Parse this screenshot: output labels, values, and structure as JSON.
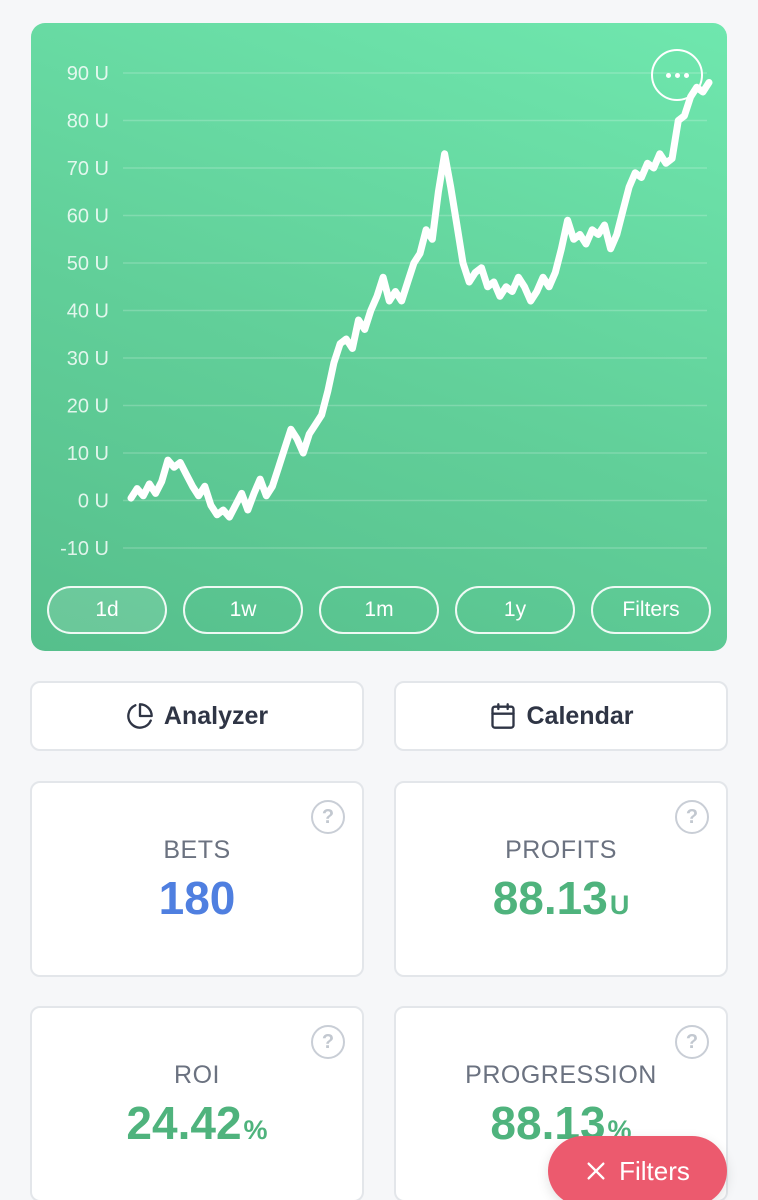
{
  "chart": {
    "menu_icon": "more-horizontal-icon",
    "range_buttons": [
      {
        "label": "1d",
        "active": true
      },
      {
        "label": "1w",
        "active": false
      },
      {
        "label": "1m",
        "active": false
      },
      {
        "label": "1y",
        "active": false
      },
      {
        "label": "Filters",
        "active": false
      }
    ]
  },
  "chart_data": {
    "type": "line",
    "title": "",
    "xlabel": "",
    "ylabel": "",
    "y_unit": "U",
    "ylim": [
      -10,
      90
    ],
    "yticks": [
      90,
      80,
      70,
      60,
      50,
      40,
      30,
      20,
      10,
      0,
      -10
    ],
    "ytick_labels": [
      "90 U",
      "80 U",
      "70 U",
      "60 U",
      "50 U",
      "40 U",
      "30 U",
      "20 U",
      "10 U",
      "0 U",
      "-10 U"
    ],
    "grid": true,
    "line_color": "#ffffff",
    "series": [
      {
        "values": [
          0.5,
          2.5,
          1.0,
          3.5,
          1.5,
          4.0,
          8.5,
          7.0,
          8.0,
          5.5,
          3.0,
          1.0,
          3.0,
          -1.0,
          -3.0,
          -2.0,
          -3.5,
          -1.0,
          1.5,
          -2.0,
          1.5,
          4.5,
          1.0,
          3.0,
          7.0,
          11.0,
          15.0,
          13.0,
          10.0,
          14.0,
          16.0,
          18.0,
          23.0,
          29.0,
          33.0,
          34.0,
          32.0,
          38.0,
          36.0,
          40.0,
          43.0,
          47.0,
          42.0,
          44.0,
          42.0,
          46.0,
          50.0,
          52.0,
          57.0,
          55.0,
          65.0,
          73.0,
          66.0,
          58.0,
          50.0,
          46.0,
          48.0,
          49.0,
          45.0,
          46.0,
          43.0,
          45.0,
          44.0,
          47.0,
          45.0,
          42.0,
          44.0,
          47.0,
          45.0,
          48.0,
          53.0,
          59.0,
          55.0,
          56.0,
          54.0,
          57.0,
          56.0,
          58.0,
          53.0,
          56.0,
          61.0,
          66.0,
          69.0,
          68.0,
          71.0,
          70.0,
          73.0,
          71.0,
          72.0,
          80.0,
          81.0,
          85.0,
          87.0,
          86.0,
          88.0
        ]
      }
    ]
  },
  "tools": {
    "analyzer": {
      "label": "Analyzer",
      "icon": "pie-chart-icon"
    },
    "calendar": {
      "label": "Calendar",
      "icon": "calendar-icon"
    }
  },
  "stats": {
    "bets": {
      "label": "BETS",
      "value": "180",
      "color": "#4f7fe0"
    },
    "profits": {
      "label": "PROFITS",
      "value": "88.13",
      "unit": "U",
      "color": "#4fb37d"
    },
    "roi": {
      "label": "ROI",
      "value": "24.42",
      "unit": "%",
      "color": "#4fb37d"
    },
    "progression": {
      "label": "PROGRESSION",
      "value": "88.13",
      "unit": "%",
      "color": "#4fb37d"
    },
    "help_icon": "question-circle-icon",
    "help_glyph": "?"
  },
  "fab": {
    "label": "Filters",
    "icon": "close-icon",
    "color": "#ec5a6e"
  }
}
